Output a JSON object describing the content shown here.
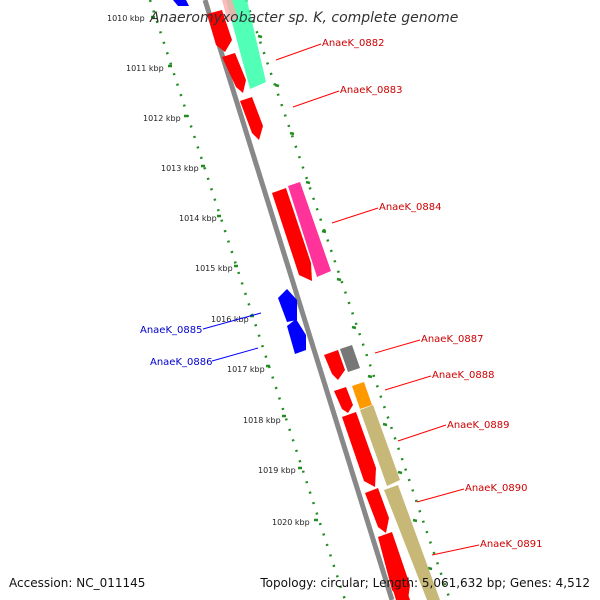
{
  "title": "Anaeromyxobacter sp. K, complete genome",
  "footer": {
    "accession": "Accession: NC_011145",
    "topology": "Topology: circular; Length: 5,061,632 bp; Genes: 4,512"
  },
  "scale": {
    "ticks": [
      "1010 kbp",
      "1011 kbp",
      "1012 kbp",
      "1013 kbp",
      "1014 kbp",
      "1015 kbp",
      "1016 kbp",
      "1017 kbp",
      "1018 kbp",
      "1019 kbp",
      "1020 kbp"
    ]
  },
  "genes": [
    {
      "label": "AnaeK_0882",
      "color": "#ff0000"
    },
    {
      "label": "AnaeK_0883",
      "color": "#ff0000"
    },
    {
      "label": "AnaeK_0884",
      "color": "#ff0000"
    },
    {
      "label": "AnaeK_0885",
      "color": "#0000ff"
    },
    {
      "label": "AnaeK_0886",
      "color": "#0000ff"
    },
    {
      "label": "AnaeK_0887",
      "color": "#ff0000"
    },
    {
      "label": "AnaeK_0888",
      "color": "#ff0000"
    },
    {
      "label": "AnaeK_0889",
      "color": "#ff0000"
    },
    {
      "label": "AnaeK_0890",
      "color": "#ff0000"
    },
    {
      "label": "AnaeK_0891",
      "color": "#ff0000"
    }
  ],
  "colors": {
    "forward": "#ff0000",
    "reverse": "#0000ff",
    "backbone": "#888888",
    "tick": "#228b22",
    "feature_green": "#33ffaa",
    "feature_magenta": "#ff3399",
    "feature_gray": "#777777",
    "feature_orange": "#ff9900",
    "feature_khaki": "#c8b878"
  }
}
